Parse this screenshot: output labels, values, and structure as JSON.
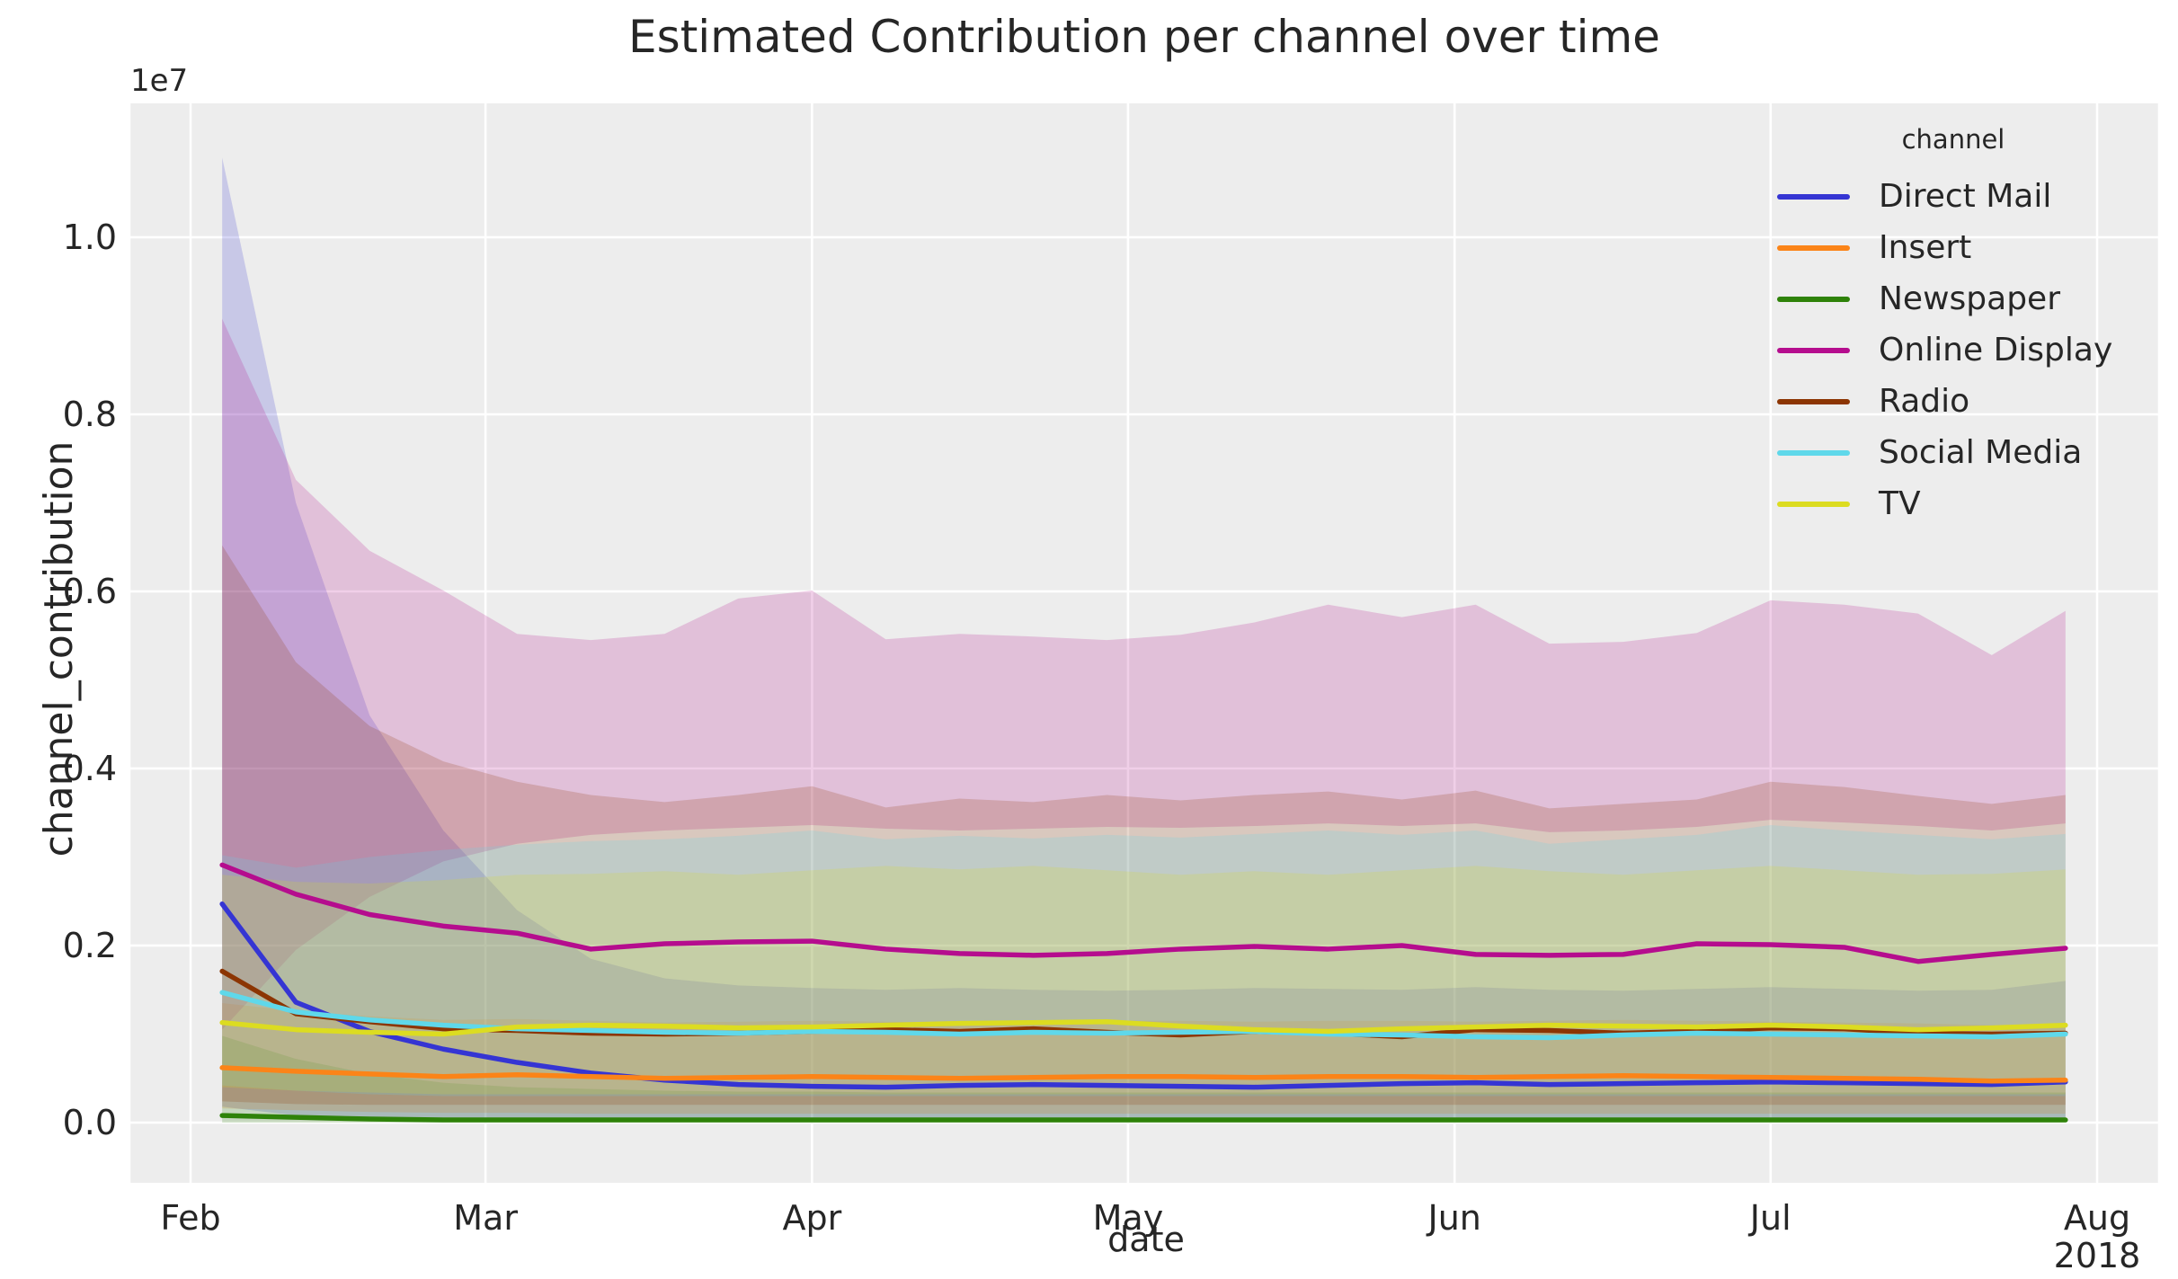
{
  "chart_data": {
    "type": "line",
    "title": "Estimated Contribution per channel over time",
    "xlabel": "date",
    "ylabel": "channel_contribution",
    "y_offset_label": "1e7",
    "x_year_label": "2018",
    "plot_background": "#ededed",
    "grid_color": "#ffffff",
    "text_color": "#262626",
    "grid": true,
    "band_opacity": 0.2,
    "ylim": [
      -0.068,
      1.151
    ],
    "y_ticks": [
      {
        "label": "0.0",
        "value": 0.0
      },
      {
        "label": "0.2",
        "value": 0.2
      },
      {
        "label": "0.4",
        "value": 0.4
      },
      {
        "label": "0.6",
        "value": 0.6
      },
      {
        "label": "0.8",
        "value": 0.8
      },
      {
        "label": "1.0",
        "value": 1.0
      }
    ],
    "x_ticks": [
      {
        "label": "Feb",
        "day": 0
      },
      {
        "label": "Mar",
        "day": 28
      },
      {
        "label": "Apr",
        "day": 59
      },
      {
        "label": "May",
        "day": 89
      },
      {
        "label": "Jun",
        "day": 120
      },
      {
        "label": "Jul",
        "day": 150
      },
      {
        "label": "Aug",
        "day": 181
      }
    ],
    "x_days": [
      3,
      10,
      17,
      24,
      31,
      38,
      45,
      52,
      59,
      66,
      73,
      80,
      87,
      94,
      101,
      108,
      115,
      122,
      129,
      136,
      143,
      150,
      157,
      164,
      171,
      178
    ],
    "x_unit": "days since Feb 1, 2018, weekly points",
    "value_unit": "1e7",
    "legend": {
      "title": "channel",
      "position": "upper right"
    },
    "series": [
      {
        "name": "Direct Mail",
        "color": "#3535d3",
        "values": [
          0.247,
          0.136,
          0.103,
          0.083,
          0.068,
          0.056,
          0.048,
          0.043,
          0.041,
          0.04,
          0.042,
          0.043,
          0.042,
          0.041,
          0.04,
          0.042,
          0.044,
          0.045,
          0.043,
          0.044,
          0.045,
          0.046,
          0.045,
          0.044,
          0.043,
          0.046
        ],
        "band_hi": [
          1.09,
          0.7,
          0.46,
          0.33,
          0.24,
          0.185,
          0.163,
          0.155,
          0.152,
          0.15,
          0.152,
          0.15,
          0.149,
          0.15,
          0.152,
          0.151,
          0.15,
          0.153,
          0.15,
          0.149,
          0.151,
          0.153,
          0.151,
          0.149,
          0.15,
          0.16
        ],
        "band_lo": [
          0.018,
          0.008,
          0.005,
          0.004,
          0.003,
          0.003,
          0.002,
          0.002,
          0.002,
          0.002,
          0.002,
          0.002,
          0.002,
          0.002,
          0.002,
          0.002,
          0.002,
          0.002,
          0.002,
          0.002,
          0.002,
          0.002,
          0.002,
          0.002,
          0.002,
          0.002
        ]
      },
      {
        "name": "Insert",
        "color": "#fb8418",
        "values": [
          0.062,
          0.058,
          0.055,
          0.052,
          0.054,
          0.052,
          0.05,
          0.051,
          0.052,
          0.051,
          0.05,
          0.051,
          0.052,
          0.052,
          0.051,
          0.052,
          0.052,
          0.051,
          0.052,
          0.053,
          0.052,
          0.051,
          0.05,
          0.049,
          0.047,
          0.048
        ],
        "band_hi": [
          0.135,
          0.126,
          0.12,
          0.116,
          0.117,
          0.115,
          0.113,
          0.114,
          0.115,
          0.114,
          0.113,
          0.114,
          0.115,
          0.115,
          0.114,
          0.115,
          0.115,
          0.114,
          0.115,
          0.116,
          0.115,
          0.114,
          0.113,
          0.112,
          0.11,
          0.112
        ],
        "band_lo": [
          0.016,
          0.014,
          0.012,
          0.011,
          0.011,
          0.01,
          0.01,
          0.01,
          0.01,
          0.01,
          0.01,
          0.01,
          0.01,
          0.01,
          0.01,
          0.01,
          0.01,
          0.01,
          0.01,
          0.01,
          0.01,
          0.01,
          0.01,
          0.01,
          0.01,
          0.01
        ]
      },
      {
        "name": "Newspaper",
        "color": "#2e8209",
        "values": [
          0.008,
          0.006,
          0.004,
          0.003,
          0.003,
          0.003,
          0.003,
          0.003,
          0.003,
          0.003,
          0.003,
          0.003,
          0.003,
          0.003,
          0.003,
          0.003,
          0.003,
          0.003,
          0.003,
          0.003,
          0.003,
          0.003,
          0.003,
          0.003,
          0.003,
          0.003
        ],
        "band_hi": [
          0.098,
          0.072,
          0.055,
          0.045,
          0.04,
          0.038,
          0.036,
          0.035,
          0.035,
          0.034,
          0.034,
          0.034,
          0.034,
          0.034,
          0.034,
          0.034,
          0.034,
          0.034,
          0.034,
          0.034,
          0.034,
          0.034,
          0.034,
          0.034,
          0.034,
          0.034
        ],
        "band_lo": [
          0.0,
          0.0,
          0.0,
          0.0,
          0.0,
          0.0,
          0.0,
          0.0,
          0.0,
          0.0,
          0.0,
          0.0,
          0.0,
          0.0,
          0.0,
          0.0,
          0.0,
          0.0,
          0.0,
          0.0,
          0.0,
          0.0,
          0.0,
          0.0,
          0.0,
          0.0
        ]
      },
      {
        "name": "Online Display",
        "color": "#b50d8e",
        "values": [
          0.291,
          0.258,
          0.235,
          0.222,
          0.214,
          0.196,
          0.202,
          0.204,
          0.205,
          0.196,
          0.191,
          0.189,
          0.191,
          0.196,
          0.199,
          0.196,
          0.2,
          0.19,
          0.189,
          0.19,
          0.202,
          0.201,
          0.198,
          0.182,
          0.19,
          0.197
        ],
        "band_hi": [
          0.908,
          0.726,
          0.646,
          0.601,
          0.552,
          0.545,
          0.552,
          0.592,
          0.601,
          0.546,
          0.552,
          0.549,
          0.545,
          0.551,
          0.565,
          0.585,
          0.571,
          0.585,
          0.541,
          0.543,
          0.553,
          0.59,
          0.585,
          0.575,
          0.528,
          0.578
        ],
        "band_lo": [
          0.105,
          0.195,
          0.255,
          0.295,
          0.315,
          0.325,
          0.33,
          0.333,
          0.336,
          0.332,
          0.33,
          0.332,
          0.334,
          0.333,
          0.335,
          0.338,
          0.335,
          0.338,
          0.328,
          0.33,
          0.334,
          0.342,
          0.339,
          0.335,
          0.33,
          0.338
        ]
      },
      {
        "name": "Radio",
        "color": "#8c3503",
        "values": [
          0.171,
          0.123,
          0.114,
          0.106,
          0.104,
          0.101,
          0.1,
          0.101,
          0.103,
          0.105,
          0.103,
          0.106,
          0.102,
          0.099,
          0.103,
          0.101,
          0.097,
          0.105,
          0.104,
          0.101,
          0.103,
          0.107,
          0.106,
          0.101,
          0.1,
          0.101
        ],
        "band_hi": [
          0.652,
          0.52,
          0.448,
          0.408,
          0.385,
          0.37,
          0.362,
          0.37,
          0.38,
          0.356,
          0.366,
          0.362,
          0.37,
          0.364,
          0.37,
          0.374,
          0.365,
          0.375,
          0.355,
          0.36,
          0.365,
          0.385,
          0.379,
          0.369,
          0.36,
          0.37
        ],
        "band_lo": [
          0.024,
          0.021,
          0.02,
          0.02,
          0.02,
          0.02,
          0.02,
          0.02,
          0.02,
          0.02,
          0.02,
          0.02,
          0.02,
          0.02,
          0.02,
          0.02,
          0.02,
          0.02,
          0.02,
          0.02,
          0.02,
          0.02,
          0.02,
          0.02,
          0.02,
          0.02
        ]
      },
      {
        "name": "Social Media",
        "color": "#5fd8ea",
        "values": [
          0.147,
          0.125,
          0.116,
          0.11,
          0.106,
          0.104,
          0.102,
          0.101,
          0.103,
          0.102,
          0.1,
          0.102,
          0.101,
          0.102,
          0.103,
          0.1,
          0.099,
          0.097,
          0.096,
          0.099,
          0.101,
          0.1,
          0.099,
          0.098,
          0.097,
          0.1
        ],
        "band_hi": [
          0.302,
          0.288,
          0.3,
          0.308,
          0.314,
          0.318,
          0.32,
          0.324,
          0.33,
          0.32,
          0.324,
          0.321,
          0.325,
          0.322,
          0.326,
          0.33,
          0.325,
          0.33,
          0.315,
          0.32,
          0.325,
          0.336,
          0.33,
          0.325,
          0.32,
          0.326
        ],
        "band_lo": [
          0.042,
          0.036,
          0.032,
          0.03,
          0.03,
          0.03,
          0.03,
          0.03,
          0.03,
          0.03,
          0.03,
          0.03,
          0.03,
          0.03,
          0.03,
          0.03,
          0.03,
          0.03,
          0.03,
          0.03,
          0.03,
          0.03,
          0.03,
          0.03,
          0.03,
          0.03
        ]
      },
      {
        "name": "TV",
        "color": "#dcdc21",
        "values": [
          0.113,
          0.105,
          0.102,
          0.1,
          0.108,
          0.11,
          0.109,
          0.107,
          0.108,
          0.11,
          0.112,
          0.113,
          0.114,
          0.109,
          0.105,
          0.103,
          0.106,
          0.108,
          0.11,
          0.109,
          0.108,
          0.11,
          0.108,
          0.105,
          0.107,
          0.11
        ],
        "band_hi": [
          0.28,
          0.272,
          0.27,
          0.274,
          0.28,
          0.281,
          0.284,
          0.28,
          0.285,
          0.29,
          0.286,
          0.29,
          0.285,
          0.28,
          0.284,
          0.28,
          0.285,
          0.29,
          0.284,
          0.28,
          0.285,
          0.29,
          0.285,
          0.28,
          0.281,
          0.286
        ],
        "band_lo": [
          0.04,
          0.036,
          0.034,
          0.032,
          0.032,
          0.032,
          0.032,
          0.032,
          0.032,
          0.032,
          0.032,
          0.032,
          0.032,
          0.032,
          0.032,
          0.032,
          0.032,
          0.032,
          0.032,
          0.032,
          0.032,
          0.032,
          0.032,
          0.032,
          0.032,
          0.032
        ]
      }
    ]
  }
}
